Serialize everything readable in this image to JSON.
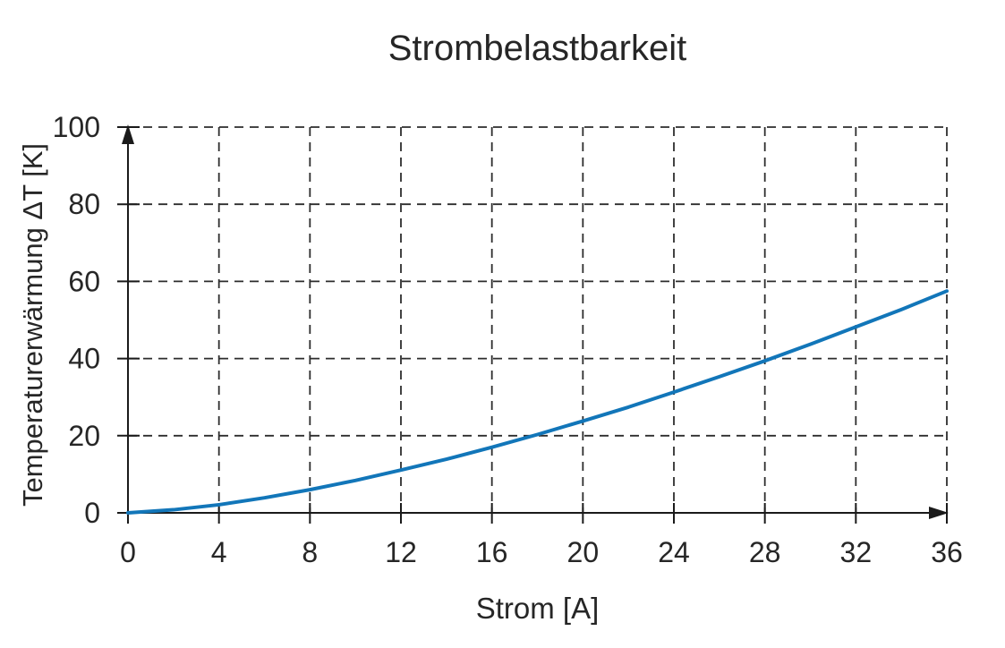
{
  "page": {
    "background": "#ffffff"
  },
  "chart_data": {
    "type": "line",
    "title": "Strombelastbarkeit",
    "xlabel": "Strom [A]",
    "ylabel": "Temperaturerwärmung ΔT [K]",
    "xlim": [
      0,
      36
    ],
    "ylim": [
      0,
      100
    ],
    "xticks": [
      0,
      4,
      8,
      12,
      16,
      20,
      24,
      28,
      32,
      36
    ],
    "yticks": [
      0,
      20,
      40,
      60,
      80,
      100
    ],
    "grid": true,
    "grid_style": "dashed",
    "legend": false,
    "axis_arrows": true,
    "colors": {
      "curve": "#1276b9",
      "axis": "#1a1a1a",
      "grid": "#2d2d2d",
      "text": "#262626"
    },
    "series": [
      {
        "x": [
          0,
          2,
          4,
          6,
          8,
          10,
          12,
          14,
          16,
          18,
          20,
          22,
          24,
          26,
          28,
          30,
          32,
          34,
          36
        ],
        "y": [
          0,
          0.8,
          2.1,
          3.9,
          6.0,
          8.4,
          11.1,
          13.9,
          17.0,
          20.3,
          23.8,
          27.4,
          31.3,
          35.3,
          39.4,
          43.7,
          48.2,
          52.7,
          57.5
        ]
      }
    ]
  }
}
